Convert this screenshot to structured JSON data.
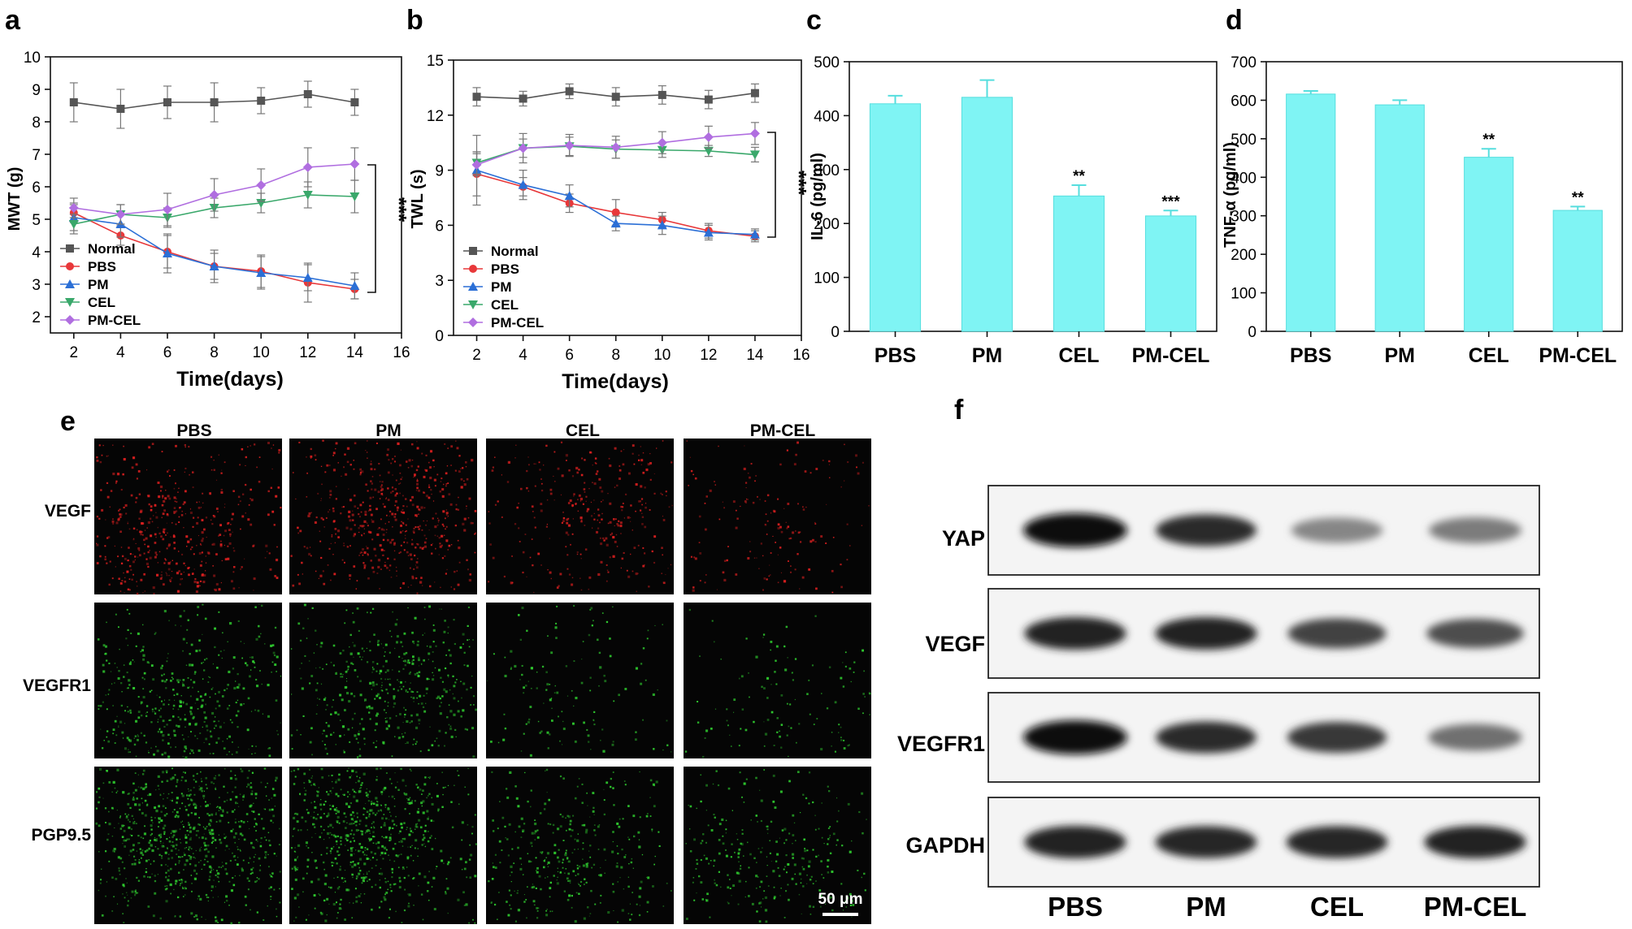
{
  "panel_letters": [
    "a",
    "b",
    "c",
    "d",
    "e",
    "f"
  ],
  "colors": {
    "Normal": "#555555",
    "PBS": "#e8383a",
    "PM": "#2b6fd6",
    "CEL": "#3aa86b",
    "PM-CEL": "#b06ee0",
    "bar": "#7ff4f4",
    "bar_edge": "#56dede"
  },
  "chart_data": [
    {
      "id": "a",
      "type": "line",
      "xlabel": "Time(days)",
      "ylabel": "MWT (g)",
      "xlim": [
        1,
        16
      ],
      "xticks": [
        2,
        4,
        6,
        8,
        10,
        12,
        14,
        16
      ],
      "ylim": [
        1.5,
        10
      ],
      "yticks": [
        2,
        3,
        4,
        5,
        6,
        7,
        8,
        9,
        10
      ],
      "x": [
        2,
        4,
        6,
        8,
        10,
        12,
        14
      ],
      "significance": "***",
      "legend_position": "lower-left",
      "series": [
        {
          "name": "Normal",
          "marker": "square",
          "values": [
            8.6,
            8.4,
            8.6,
            8.6,
            8.65,
            8.85,
            8.6
          ],
          "err": [
            0.6,
            0.6,
            0.5,
            0.6,
            0.4,
            0.4,
            0.4
          ]
        },
        {
          "name": "PBS",
          "marker": "circle",
          "values": [
            5.2,
            4.5,
            4.0,
            3.55,
            3.4,
            3.05,
            2.85
          ],
          "err": [
            0.3,
            0.3,
            0.5,
            0.5,
            0.5,
            0.6,
            0.3
          ]
        },
        {
          "name": "PM",
          "marker": "triangle-up",
          "values": [
            5.05,
            4.85,
            3.95,
            3.55,
            3.35,
            3.2,
            2.95
          ],
          "err": [
            0.4,
            0.4,
            0.6,
            0.4,
            0.5,
            0.4,
            0.4
          ]
        },
        {
          "name": "CEL",
          "marker": "triangle-down",
          "values": [
            4.85,
            5.15,
            5.05,
            5.35,
            5.5,
            5.75,
            5.7
          ],
          "err": [
            0.3,
            0.3,
            0.3,
            0.3,
            0.3,
            0.4,
            0.5
          ]
        },
        {
          "name": "PM-CEL",
          "marker": "diamond",
          "values": [
            5.35,
            5.15,
            5.3,
            5.75,
            6.05,
            6.6,
            6.7
          ],
          "err": [
            0.3,
            0.3,
            0.5,
            0.5,
            0.5,
            0.6,
            0.5
          ]
        }
      ]
    },
    {
      "id": "b",
      "type": "line",
      "xlabel": "Time(days)",
      "ylabel": "TWL (s)",
      "xlim": [
        1,
        16
      ],
      "xticks": [
        2,
        4,
        6,
        8,
        10,
        12,
        14,
        16
      ],
      "ylim": [
        0,
        15
      ],
      "yticks": [
        0,
        3,
        6,
        9,
        12,
        15
      ],
      "x": [
        2,
        4,
        6,
        8,
        10,
        12,
        14
      ],
      "significance": "***",
      "legend_position": "lower-left",
      "series": [
        {
          "name": "Normal",
          "marker": "square",
          "values": [
            13.0,
            12.9,
            13.3,
            13.0,
            13.1,
            12.85,
            13.2
          ],
          "err": [
            0.5,
            0.4,
            0.4,
            0.5,
            0.5,
            0.5,
            0.5
          ]
        },
        {
          "name": "PBS",
          "marker": "circle",
          "values": [
            8.8,
            8.1,
            7.2,
            6.7,
            6.3,
            5.7,
            5.4
          ],
          "err": [
            1.2,
            0.5,
            0.5,
            0.7,
            0.4,
            0.4,
            0.3
          ]
        },
        {
          "name": "PM",
          "marker": "triangle-up",
          "values": [
            9.0,
            8.2,
            7.6,
            6.1,
            6.0,
            5.6,
            5.5
          ],
          "err": [
            1.9,
            0.8,
            0.6,
            0.4,
            0.5,
            0.4,
            0.3
          ]
        },
        {
          "name": "CEL",
          "marker": "triangle-down",
          "values": [
            9.4,
            10.2,
            10.3,
            10.15,
            10.1,
            10.05,
            9.85
          ],
          "err": [
            0.6,
            0.5,
            0.5,
            0.5,
            0.4,
            0.3,
            0.4
          ]
        },
        {
          "name": "PM-CEL",
          "marker": "diamond",
          "values": [
            9.3,
            10.2,
            10.35,
            10.25,
            10.5,
            10.8,
            11.0
          ],
          "err": [
            0.6,
            0.8,
            0.6,
            0.6,
            0.6,
            0.6,
            0.6
          ]
        }
      ]
    },
    {
      "id": "c",
      "type": "bar",
      "ylabel": "IL-6 (pg/ml)",
      "categories": [
        "PBS",
        "PM",
        "CEL",
        "PM-CEL"
      ],
      "values": [
        422,
        434,
        251,
        214
      ],
      "err": [
        15,
        32,
        20,
        10
      ],
      "significance": [
        "",
        "",
        "**",
        "***"
      ],
      "ylim": [
        0,
        500
      ],
      "yticks": [
        0,
        100,
        200,
        300,
        400,
        500
      ]
    },
    {
      "id": "d",
      "type": "bar",
      "ylabel": "TNF-α (pg/ml)",
      "categories": [
        "PBS",
        "PM",
        "CEL",
        "PM-CEL"
      ],
      "values": [
        616,
        588,
        452,
        314
      ],
      "err": [
        8,
        12,
        22,
        10
      ],
      "significance": [
        "",
        "",
        "**",
        "**"
      ],
      "ylim": [
        0,
        700
      ],
      "yticks": [
        0,
        100,
        200,
        300,
        400,
        500,
        600,
        700
      ]
    }
  ],
  "panel_e": {
    "columns": [
      "PBS",
      "PM",
      "CEL",
      "PM-CEL"
    ],
    "rows": [
      {
        "label": "VEGF",
        "color": "#e02020",
        "density": [
          0.55,
          0.6,
          0.35,
          0.18
        ]
      },
      {
        "label": "VEGFR1",
        "color": "#30d030",
        "density": [
          0.5,
          0.5,
          0.16,
          0.14
        ]
      },
      {
        "label": "PGP9.5",
        "color": "#30d030",
        "density": [
          0.85,
          0.8,
          0.4,
          0.32
        ]
      }
    ],
    "scale_bar": "50 μm"
  },
  "panel_f": {
    "lanes": [
      "PBS",
      "PM",
      "CEL",
      "PM-CEL"
    ],
    "rows": [
      {
        "label": "YAP",
        "intensity": [
          1.0,
          0.85,
          0.45,
          0.5
        ]
      },
      {
        "label": "VEGF",
        "intensity": [
          0.9,
          0.9,
          0.75,
          0.7
        ]
      },
      {
        "label": "VEGFR1",
        "intensity": [
          1.0,
          0.85,
          0.8,
          0.55
        ]
      },
      {
        "label": "GAPDH",
        "intensity": [
          0.9,
          0.88,
          0.88,
          0.9
        ]
      }
    ]
  }
}
